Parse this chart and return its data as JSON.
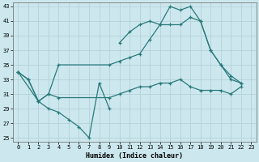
{
  "xlabel": "Humidex (Indice chaleur)",
  "bg_color": "#cce8ee",
  "grid_color": "#b0ced6",
  "line_color": "#2a7a7a",
  "xlim": [
    -0.5,
    23.5
  ],
  "ylim": [
    24.5,
    43.5
  ],
  "xticks": [
    0,
    1,
    2,
    3,
    4,
    5,
    6,
    7,
    8,
    9,
    10,
    11,
    12,
    13,
    14,
    15,
    16,
    17,
    18,
    19,
    20,
    21,
    22,
    23
  ],
  "yticks": [
    25,
    27,
    29,
    31,
    33,
    35,
    37,
    39,
    41,
    43
  ],
  "series": [
    {
      "x": [
        10,
        11,
        12,
        13,
        14,
        15,
        16,
        17,
        18,
        19,
        20,
        21,
        22
      ],
      "y": [
        38,
        39.5,
        40.5,
        41,
        40.5,
        43,
        42.5,
        43,
        41,
        37,
        35,
        33,
        32.5
      ]
    },
    {
      "x": [
        0,
        2,
        3,
        4,
        9,
        10,
        11,
        12,
        13,
        14,
        15,
        16,
        17,
        18,
        19,
        20,
        21,
        22
      ],
      "y": [
        34,
        30,
        31,
        35,
        35,
        35.5,
        36,
        36.5,
        38.5,
        40.5,
        40.5,
        40.5,
        41.5,
        41,
        37,
        35,
        33.5,
        32.5
      ]
    },
    {
      "x": [
        0,
        1,
        2,
        3,
        4,
        9,
        10,
        11,
        12,
        13,
        14,
        15,
        16,
        17,
        18,
        19,
        20,
        21,
        22
      ],
      "y": [
        34,
        33,
        30,
        31,
        30.5,
        30.5,
        31,
        31.5,
        32,
        32,
        32.5,
        32.5,
        33,
        32,
        31.5,
        31.5,
        31.5,
        31,
        32
      ]
    },
    {
      "x": [
        0,
        1,
        2,
        3,
        4,
        5,
        6,
        7,
        8,
        9
      ],
      "y": [
        34,
        33,
        30,
        29,
        28.5,
        27.5,
        26.5,
        25,
        32.5,
        29
      ]
    }
  ]
}
